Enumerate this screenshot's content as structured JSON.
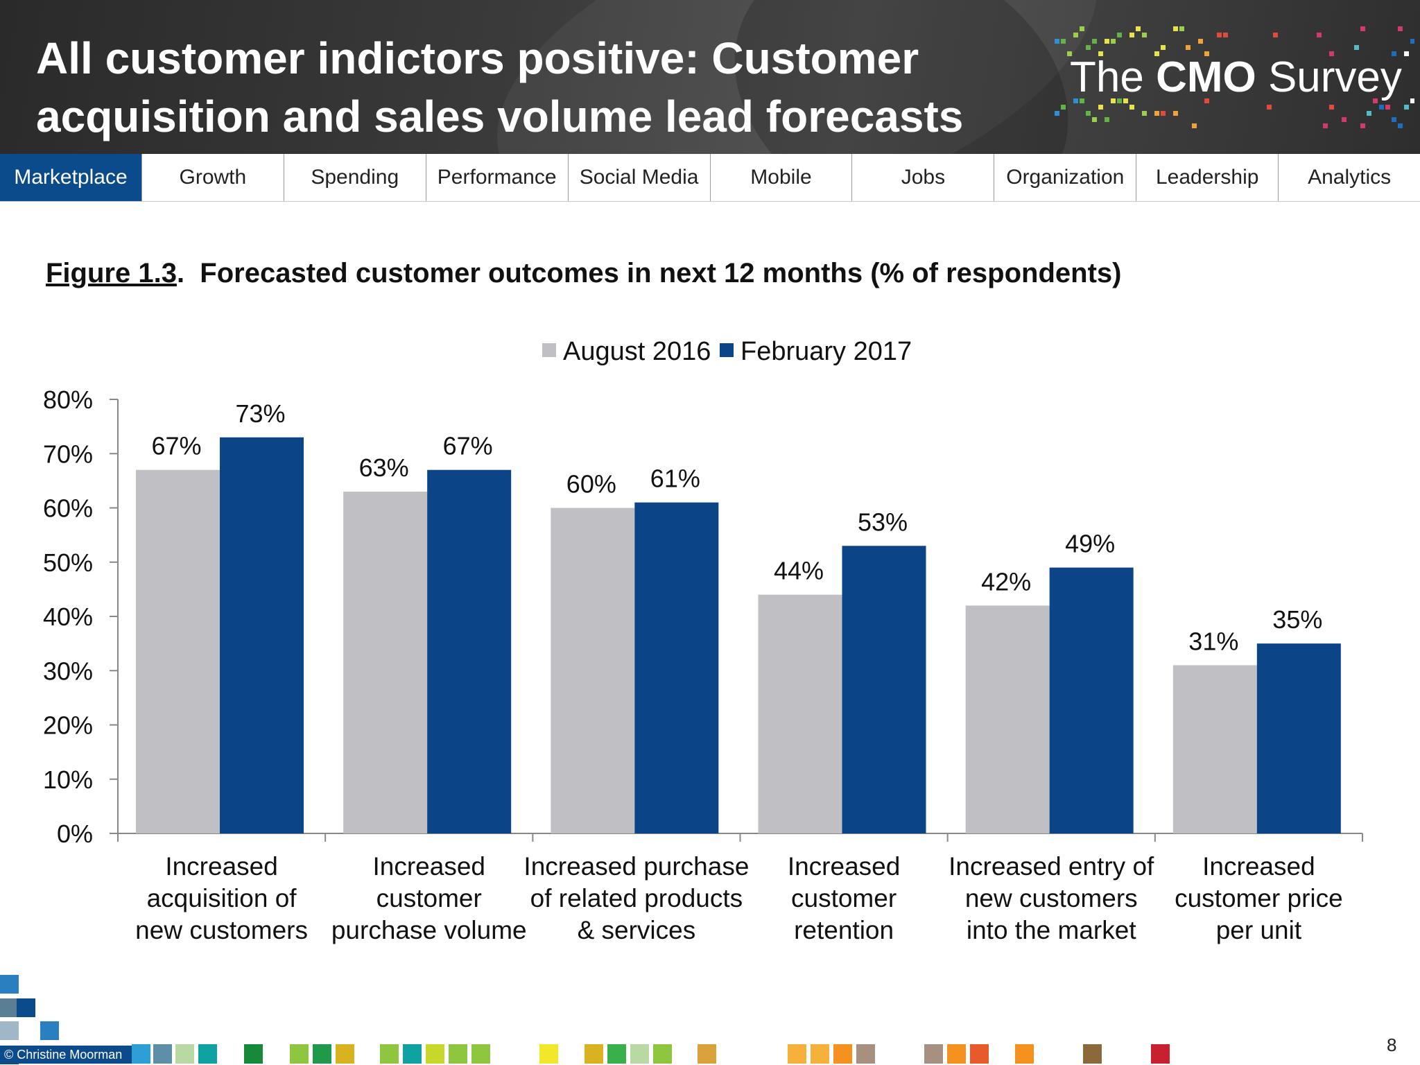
{
  "header": {
    "title": "All customer indictors positive: Customer acquisition and sales volume lead forecasts",
    "logo": {
      "prefix": "The ",
      "brand": "CMO",
      "suffix": " Survey"
    }
  },
  "nav": {
    "active": "Marketplace",
    "tabs": [
      "Marketplace",
      "Growth",
      "Spending",
      "Performance",
      "Social Media",
      "Mobile",
      "Jobs",
      "Organization",
      "Leadership",
      "Analytics"
    ]
  },
  "figure": {
    "number": "Figure 1.3",
    "name": "Forecasted customer outcomes in next 12 months",
    "unit": "(% of respondents)"
  },
  "chart_data": {
    "type": "bar",
    "categories": [
      [
        "Increased",
        "acquisition of",
        "new customers"
      ],
      [
        "Increased",
        "customer",
        "purchase volume"
      ],
      [
        "Increased purchase",
        "of related products",
        "& services"
      ],
      [
        "Increased",
        "customer",
        "retention"
      ],
      [
        "Increased entry of",
        "new customers",
        "into the market"
      ],
      [
        "Increased",
        "customer price",
        "per unit"
      ]
    ],
    "series": [
      {
        "name": "August 2016",
        "color": "#c0bfc3",
        "values": [
          67,
          63,
          60,
          44,
          42,
          31
        ],
        "labels": [
          "67%",
          "63%",
          "60%",
          "44%",
          "42%",
          "31%"
        ]
      },
      {
        "name": "February 2017",
        "color": "#0b4487",
        "values": [
          73,
          67,
          61,
          53,
          49,
          35
        ],
        "labels": [
          "73%",
          "67%",
          "61%",
          "53%",
          "49%",
          "35%"
        ]
      }
    ],
    "yticks": [
      "0%",
      "10%",
      "20%",
      "30%",
      "40%",
      "50%",
      "60%",
      "70%",
      "80%"
    ],
    "ylim": [
      0,
      80
    ],
    "legend_position": "top-center",
    "grid": false
  },
  "footer": {
    "copyright": "© Christine Moorman",
    "page_number": "8"
  },
  "colors": {
    "nav_active": "#0b4a8b",
    "accent_blue": "#0b4487",
    "accent_gray": "#c0bfc3"
  }
}
